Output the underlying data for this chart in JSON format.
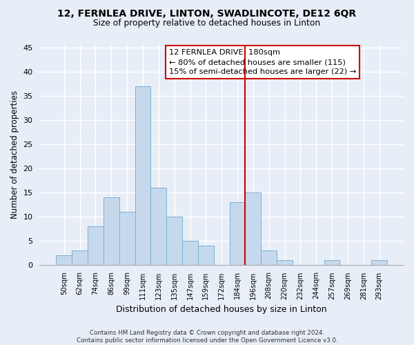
{
  "title": "12, FERNLEA DRIVE, LINTON, SWADLINCOTE, DE12 6QR",
  "subtitle": "Size of property relative to detached houses in Linton",
  "xlabel": "Distribution of detached houses by size in Linton",
  "ylabel": "Number of detached properties",
  "bin_labels": [
    "50sqm",
    "62sqm",
    "74sqm",
    "86sqm",
    "99sqm",
    "111sqm",
    "123sqm",
    "135sqm",
    "147sqm",
    "159sqm",
    "172sqm",
    "184sqm",
    "196sqm",
    "208sqm",
    "220sqm",
    "232sqm",
    "244sqm",
    "257sqm",
    "269sqm",
    "281sqm",
    "293sqm"
  ],
  "bar_heights": [
    2,
    3,
    8,
    14,
    11,
    37,
    16,
    10,
    5,
    4,
    0,
    13,
    15,
    3,
    1,
    0,
    0,
    1,
    0,
    0,
    1
  ],
  "bar_color": "#c6d9ec",
  "bar_edge_color": "#7bafd4",
  "vline_color": "#cc0000",
  "legend_title": "12 FERNLEA DRIVE: 180sqm",
  "legend_line1": "← 80% of detached houses are smaller (115)",
  "legend_line2": "15% of semi-detached houses are larger (22) →",
  "footer_line1": "Contains HM Land Registry data © Crown copyright and database right 2024.",
  "footer_line2": "Contains public sector information licensed under the Open Government Licence v3.0.",
  "ylim": [
    0,
    45
  ],
  "yticks": [
    0,
    5,
    10,
    15,
    20,
    25,
    30,
    35,
    40,
    45
  ],
  "bg_color": "#e8eef7",
  "grid_color": "#ffffff",
  "vline_bar_index": 11,
  "figsize": [
    6.0,
    5.0
  ],
  "dpi": 100
}
